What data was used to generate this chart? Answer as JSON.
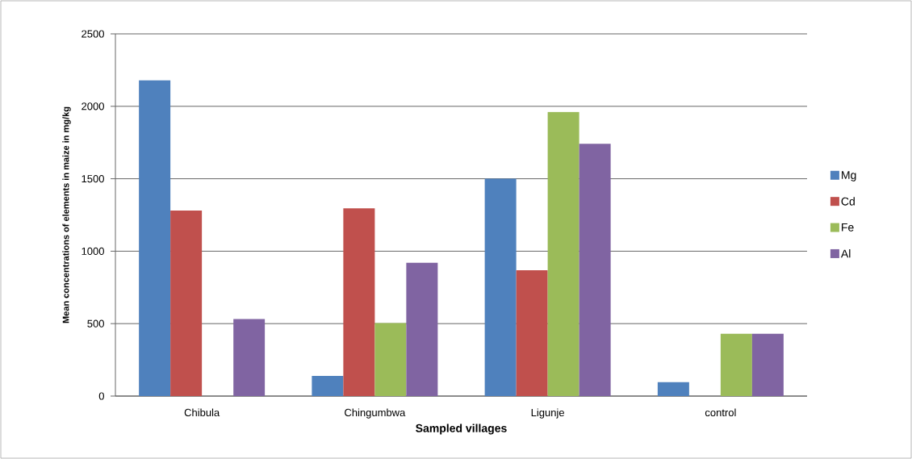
{
  "chart_data": {
    "type": "bar",
    "xlabel": "Sampled villages",
    "ylabel": "Mean concentrations of elements in maize in mg/kg",
    "categories": [
      "Chibula",
      "Chingumbwa",
      "Ligunje",
      "control"
    ],
    "series": [
      {
        "name": "Mg",
        "color": "#4f81bd",
        "values": [
          2180,
          139,
          1500,
          96
        ]
      },
      {
        "name": "Cd",
        "color": "#c0504d",
        "values": [
          1281,
          1296,
          869,
          0
        ]
      },
      {
        "name": "Fe",
        "color": "#9bbb59",
        "values": [
          0,
          504,
          1961,
          430
        ]
      },
      {
        "name": "Al",
        "color": "#8064a2",
        "values": [
          531,
          920,
          1741,
          430
        ]
      }
    ],
    "ylim": [
      0,
      2500
    ],
    "yticks": [
      0,
      500,
      1000,
      1500,
      2000,
      2500
    ],
    "grid": "y",
    "legend": "right"
  }
}
